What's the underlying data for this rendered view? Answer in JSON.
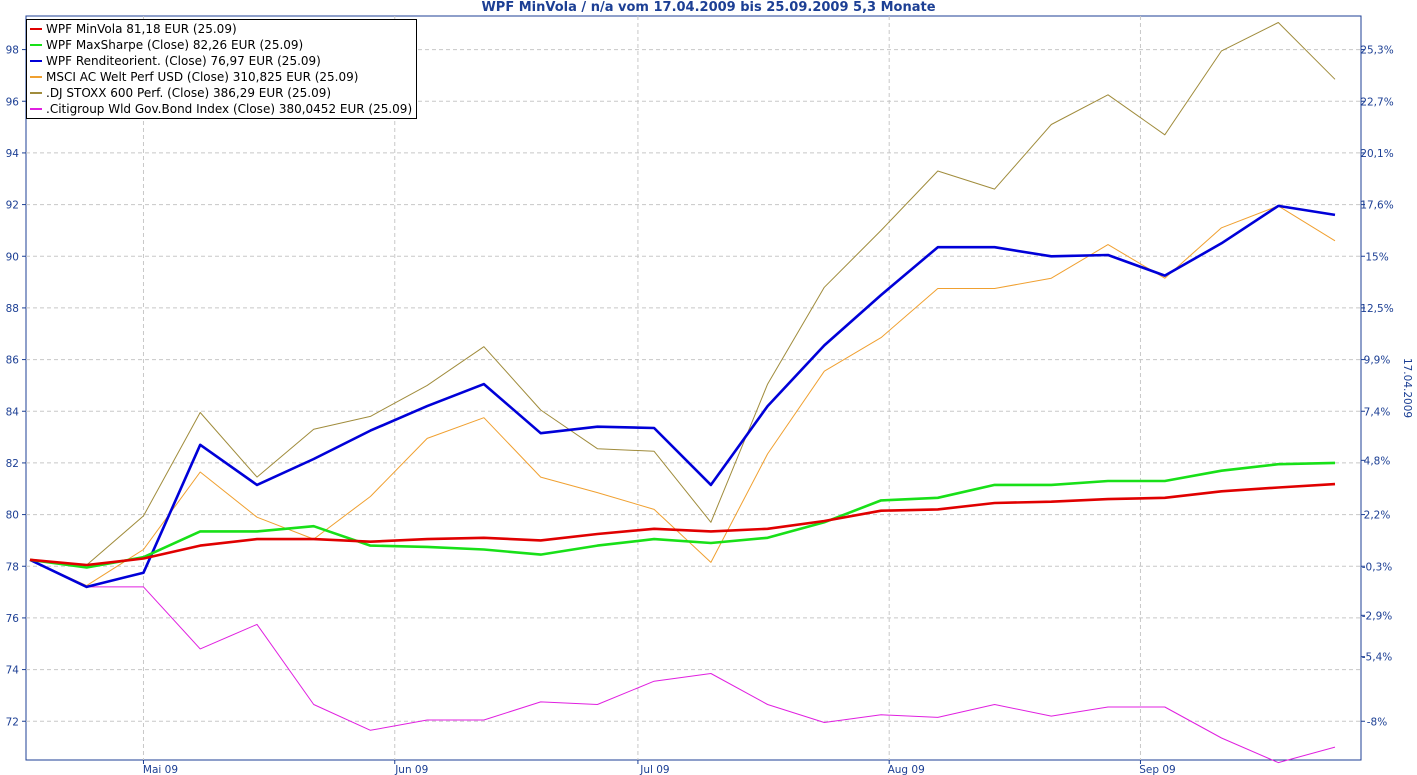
{
  "chart_data": {
    "type": "line",
    "title": "WPF MinVola / n/a vom 17.04.2009 bis 25.09.2009 5,3 Monate",
    "y2_label": "17.04.2009",
    "xlabel": "",
    "ylabel": "",
    "x_domain": [
      "2009-04-17",
      "2009-09-25"
    ],
    "x_ticks": [
      {
        "date": "2009-05-01",
        "label": "Mai 09"
      },
      {
        "date": "2009-06-01",
        "label": "Jun 09"
      },
      {
        "date": "2009-07-01",
        "label": "Jul 09"
      },
      {
        "date": "2009-08-01",
        "label": "Aug 09"
      },
      {
        "date": "2009-09-01",
        "label": "Sep 09"
      }
    ],
    "ylim": [
      70.5,
      99.3
    ],
    "y_ticks_left": [
      "72",
      "74",
      "76",
      "78",
      "80",
      "82",
      "84",
      "86",
      "88",
      "90",
      "92",
      "94",
      "96",
      "98"
    ],
    "y_ticks_right": [
      {
        "value": 72.0,
        "label": "-8%"
      },
      {
        "value": 74.5,
        "label": "-5,4%"
      },
      {
        "value": 76.1,
        "label": "-2,9%"
      },
      {
        "value": 78.0,
        "label": "-0,3%"
      },
      {
        "value": 80.0,
        "label": "2,2%"
      },
      {
        "value": 82.1,
        "label": "4,8%"
      },
      {
        "value": 84.0,
        "label": "7,4%"
      },
      {
        "value": 86.0,
        "label": "9,9%"
      },
      {
        "value": 88.0,
        "label": "12,5%"
      },
      {
        "value": 90.0,
        "label": "15%"
      },
      {
        "value": 92.0,
        "label": "17,6%"
      },
      {
        "value": 94.0,
        "label": "20,1%"
      },
      {
        "value": 96.0,
        "label": "22,7%"
      },
      {
        "value": 98.0,
        "label": "25,3%"
      }
    ],
    "grid": true,
    "legend_position": "top-left",
    "x": [
      "2009-04-17",
      "2009-04-24",
      "2009-05-01",
      "2009-05-08",
      "2009-05-15",
      "2009-05-22",
      "2009-05-29",
      "2009-06-05",
      "2009-06-12",
      "2009-06-19",
      "2009-06-26",
      "2009-07-03",
      "2009-07-10",
      "2009-07-17",
      "2009-07-24",
      "2009-07-31",
      "2009-08-07",
      "2009-08-14",
      "2009-08-21",
      "2009-08-28",
      "2009-09-04",
      "2009-09-11",
      "2009-09-18",
      "2009-09-25"
    ],
    "series": [
      {
        "name": "WPF MinVola 81,18 EUR (25.09)",
        "color": "#e00000",
        "width": 2.6,
        "values": [
          78.25,
          78.05,
          78.3,
          78.8,
          79.05,
          79.05,
          78.95,
          79.05,
          79.1,
          79.0,
          79.25,
          79.45,
          79.35,
          79.45,
          79.75,
          80.15,
          80.2,
          80.45,
          80.5,
          80.6,
          80.65,
          80.9,
          81.05,
          81.18
        ]
      },
      {
        "name": "WPF MaxSharpe (Close) 82,26 EUR (25.09)",
        "color": "#18e018",
        "width": 2.6,
        "values": [
          78.25,
          77.95,
          78.35,
          79.35,
          79.35,
          79.55,
          78.8,
          78.75,
          78.65,
          78.45,
          78.8,
          79.05,
          78.9,
          79.1,
          79.7,
          80.55,
          80.65,
          81.15,
          81.15,
          81.3,
          81.3,
          81.7,
          81.95,
          82.0
        ]
      },
      {
        "name": "WPF Renditeorient. (Close) 76,97 EUR (25.09)",
        "color": "#0000d8",
        "width": 2.6,
        "values": [
          78.25,
          77.2,
          77.75,
          82.7,
          81.15,
          82.15,
          83.25,
          84.2,
          85.05,
          83.15,
          83.4,
          83.35,
          81.15,
          84.2,
          86.55,
          88.5,
          90.35,
          90.35,
          90.0,
          90.05,
          89.25,
          90.5,
          91.95,
          91.6
        ]
      },
      {
        "name": "MSCI AC Welt Perf USD (Close) 310,825 EUR (25.09)",
        "color": "#f0a030",
        "width": 1,
        "values": [
          78.25,
          77.25,
          78.65,
          81.65,
          79.9,
          79.05,
          80.7,
          82.95,
          83.75,
          81.45,
          80.85,
          80.2,
          78.15,
          82.35,
          85.55,
          86.85,
          88.75,
          88.75,
          89.15,
          90.45,
          89.15,
          91.1,
          91.95,
          90.6
        ]
      },
      {
        "name": ".DJ STOXX 600 Perf. (Close) 386,29 EUR (25.09)",
        "color": "#a08c3c",
        "width": 1,
        "values": [
          78.25,
          78.05,
          79.95,
          83.95,
          81.45,
          83.3,
          83.8,
          85.0,
          86.5,
          84.05,
          82.55,
          82.45,
          79.7,
          85.05,
          88.8,
          91.0,
          93.3,
          92.6,
          95.1,
          96.25,
          94.7,
          97.95,
          99.05,
          96.85
        ]
      },
      {
        "name": ".Citigroup Wld Gov.Bond Index (Close) 380,0452 EUR (25.09)",
        "color": "#e020e0",
        "width": 1,
        "values": [
          78.25,
          77.2,
          77.2,
          74.8,
          75.75,
          72.65,
          71.65,
          72.05,
          72.05,
          72.75,
          72.65,
          73.55,
          73.85,
          72.65,
          71.95,
          72.25,
          72.15,
          72.65,
          72.2,
          72.55,
          72.55,
          71.35,
          70.4,
          71.0
        ]
      }
    ]
  }
}
